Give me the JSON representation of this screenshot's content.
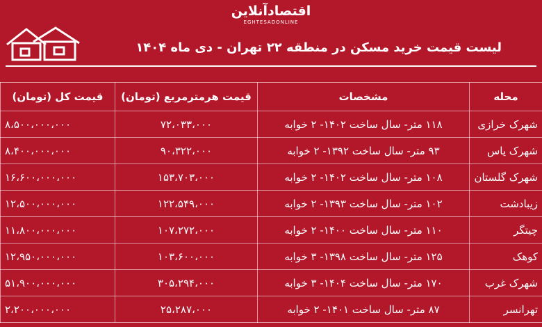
{
  "header": {
    "logo": "اقتصادآنلاین",
    "logo_sub": "EGHTESADONLINE",
    "title": "لیست قیمت خرید مسکن در منطقه ۲۲ تهران - دی ماه ۱۴۰۴"
  },
  "table": {
    "columns": [
      "محله",
      "مشخصات",
      "قیمت هرمترمربع (تومان)",
      "قیمت کل (تومان)"
    ],
    "rows": [
      [
        "شهرک خرازی",
        "۱۱۸ متر- سال ساخت ۱۴۰۲- ۲ خوابه",
        "۷۲،۰۳۳،۰۰۰",
        "۸،۵۰۰،۰۰۰،۰۰۰"
      ],
      [
        "شهرک یاس",
        "۹۳ متر- سال ساخت ۱۳۹۲- ۲ خوابه",
        "۹۰،۳۲۲،۰۰۰",
        "۸،۴۰۰،۰۰۰،۰۰۰"
      ],
      [
        "شهرک گلستان",
        "۱۰۸ متر- سال ساخت ۱۴۰۲- ۲ خوابه",
        "۱۵۳،۷۰۳،۰۰۰",
        "۱۶،۶۰۰،۰۰۰،۰۰۰"
      ],
      [
        "زیبادشت",
        "۱۰۲ متر- سال ساخت ۱۳۹۳- ۲ خوابه",
        "۱۲۲،۵۴۹،۰۰۰",
        "۱۲،۵۰۰،۰۰۰،۰۰۰"
      ],
      [
        "چیتگر",
        "۱۱۰ متر- سال ساخت ۱۴۰۰- ۲ خوابه",
        "۱۰۷،۲۷۲،۰۰۰",
        "۱۱،۸۰۰،۰۰۰،۰۰۰"
      ],
      [
        "کوهک",
        "۱۲۵ متر- سال ساخت ۱۳۹۸- ۳ خوابه",
        "۱۰۳،۶۰۰،۰۰۰",
        "۱۲،۹۵۰،۰۰۰،۰۰۰"
      ],
      [
        "شهرک غرب",
        "۱۷۰ متر- سال ساخت ۱۴۰۴- ۳ خوابه",
        "۳۰۵،۲۹۴،۰۰۰",
        "۵۱،۹۰۰،۰۰۰،۰۰۰"
      ],
      [
        "تهرانسر",
        "۸۷ متر- سال ساخت ۱۴۰۱- ۲ خوابه",
        "۲۵،۲۸۷،۰۰۰",
        "۲،۲۰۰،۰۰۰،۰۰۰"
      ]
    ]
  }
}
